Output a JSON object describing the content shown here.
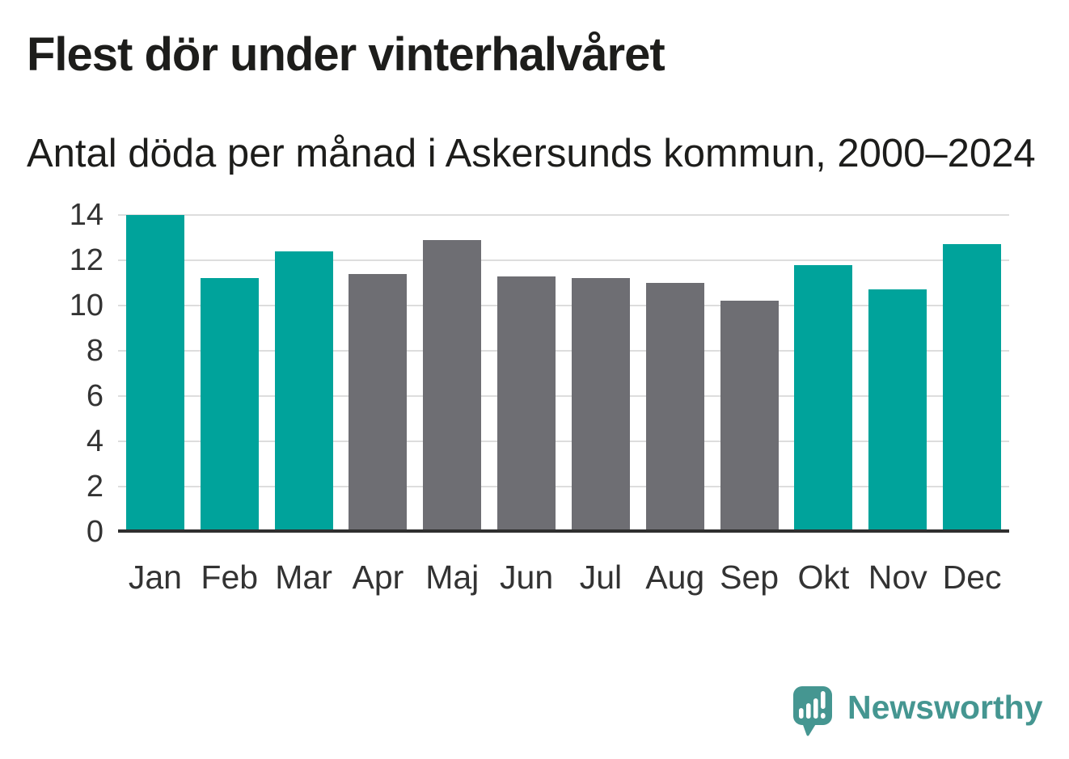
{
  "header": {
    "title": "Flest dör under vinterhalvåret",
    "subtitle": "Antal döda per månad i Askersunds kommun, 2000–2024"
  },
  "chart_data": {
    "type": "bar",
    "title": "Flest dör under vinterhalvåret",
    "subtitle": "Antal döda per månad i Askersunds kommun, 2000–2024",
    "categories": [
      "Jan",
      "Feb",
      "Mar",
      "Apr",
      "Maj",
      "Jun",
      "Jul",
      "Aug",
      "Sep",
      "Okt",
      "Nov",
      "Dec"
    ],
    "values": [
      14.0,
      11.2,
      12.4,
      11.4,
      12.9,
      11.3,
      11.2,
      11.0,
      10.2,
      11.8,
      10.7,
      12.7
    ],
    "bar_colors": [
      "teal",
      "teal",
      "teal",
      "gray",
      "gray",
      "gray",
      "gray",
      "gray",
      "gray",
      "teal",
      "teal",
      "teal"
    ],
    "xlabel": "",
    "ylabel": "",
    "ylim": [
      0,
      14
    ],
    "yticks": [
      0,
      2,
      4,
      6,
      8,
      10,
      12,
      14
    ],
    "grid": "horizontal",
    "legend": "none"
  },
  "colors": {
    "teal": "#00a39b",
    "gray": "#6e6e73",
    "logo": "#459691",
    "text": "#1d1d1b",
    "axis_labels": "#333333",
    "gridline": "#dddddd",
    "axis_line": "#2f2f2f"
  },
  "branding": {
    "logo_text": "Newsworthy",
    "logo_icon": "bar-chart-speech-bubble-icon"
  }
}
